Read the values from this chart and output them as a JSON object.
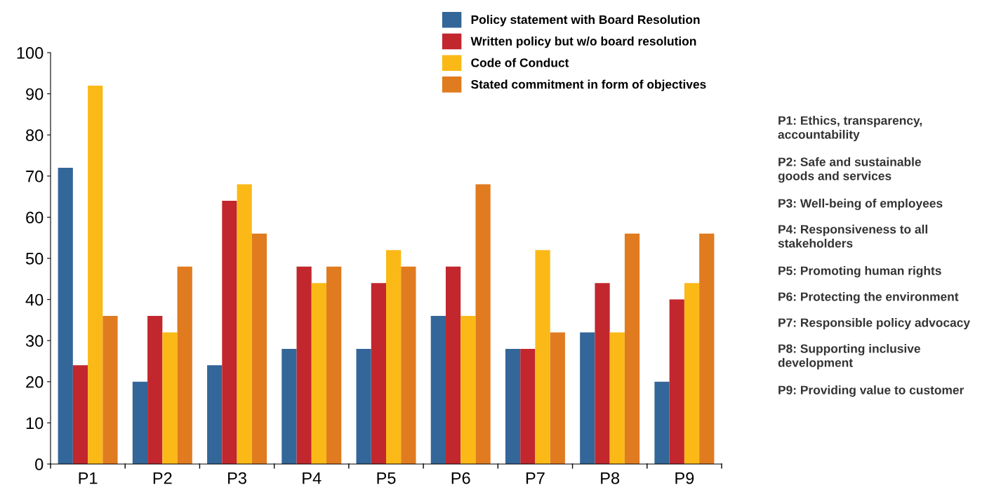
{
  "chart_data": {
    "type": "bar",
    "categories": [
      "P1",
      "P2",
      "P3",
      "P4",
      "P5",
      "P6",
      "P7",
      "P8",
      "P9"
    ],
    "series": [
      {
        "name": "Policy statement with Board Resolution",
        "color": "#336699",
        "values": [
          72,
          20,
          24,
          28,
          28,
          36,
          28,
          32,
          20
        ]
      },
      {
        "name": "Written policy but w/o board resolution",
        "color": "#c1272d",
        "values": [
          24,
          36,
          64,
          48,
          44,
          48,
          28,
          44,
          40
        ]
      },
      {
        "name": "Code of Conduct",
        "color": "#fbb917",
        "values": [
          92,
          32,
          68,
          44,
          52,
          36,
          52,
          32,
          44
        ]
      },
      {
        "name": "Stated commitment in form of objectives",
        "color": "#e07b20",
        "values": [
          36,
          48,
          56,
          48,
          48,
          68,
          32,
          56,
          56
        ]
      }
    ],
    "ylim": [
      0,
      100
    ],
    "yticks": [
      0,
      10,
      20,
      30,
      40,
      50,
      60,
      70,
      80,
      90,
      100
    ],
    "grid": false,
    "legend": "top right",
    "annotations": [
      "P1: Ethics, transparency,\naccountability",
      "P2: Safe and sustainable\ngoods and services",
      "P3: Well-being of employees",
      "P4: Responsiveness to all\nstakeholders",
      "P5: Promoting human rights",
      "P6: Protecting the environment",
      "P7: Responsible policy advocacy",
      "P8: Supporting inclusive\ndevelopment",
      "P9: Providing value to customer"
    ]
  }
}
